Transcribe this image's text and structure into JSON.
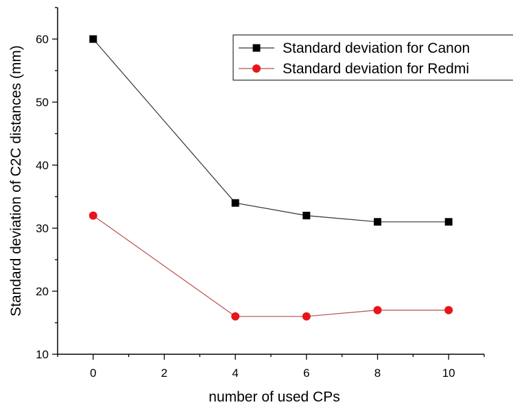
{
  "chart_data": {
    "type": "line",
    "title": "",
    "xlabel": "number of used CPs",
    "ylabel": "Standard deviation of C2C distances (mm)",
    "xlim": [
      -1,
      11
    ],
    "ylim": [
      10,
      65
    ],
    "xticks": [
      0,
      2,
      4,
      6,
      8,
      10
    ],
    "yticks": [
      10,
      20,
      30,
      40,
      50,
      60
    ],
    "grid": false,
    "legend_position": "top-right",
    "series": [
      {
        "name": "Standard deviation for Canon",
        "marker": "square",
        "color": "#000000",
        "line_color": "#333333",
        "x": [
          0,
          4,
          6,
          8,
          10
        ],
        "y": [
          60,
          34,
          32,
          31,
          31
        ]
      },
      {
        "name": "Standard deviation for Redmi",
        "marker": "circle",
        "color": "#e8141c",
        "line_color": "#b85050",
        "x": [
          0,
          4,
          6,
          8,
          10
        ],
        "y": [
          32,
          16,
          16,
          17,
          17
        ]
      }
    ]
  }
}
